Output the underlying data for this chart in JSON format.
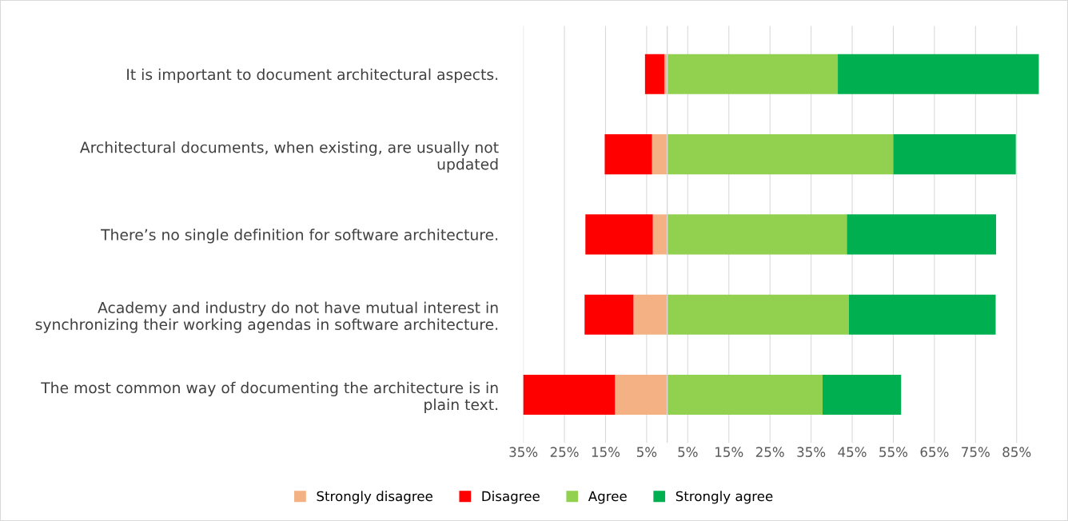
{
  "chart_data": {
    "type": "bar",
    "orientation": "horizontal",
    "stacked": true,
    "categories": [
      "It is important to document architectural aspects.",
      "Architectural documents, when existing, are usually not\nupdated",
      "There’s no single definition for software architecture.",
      "Academy and industry do not have mutual interest in\nsynchronizing their working agendas in software architecture.",
      "The most common way of documenting the architecture is in\nplain text."
    ],
    "series": [
      {
        "name": "Strongly disagree",
        "color": "#f4b183",
        "values": [
          -0.7,
          -3.7,
          -3.5,
          -8.2,
          -12.7
        ]
      },
      {
        "name": "Disagree",
        "color": "#ff0000",
        "values": [
          -4.7,
          -11.5,
          -16.4,
          -11.9,
          -22.4
        ]
      },
      {
        "name": "Agree",
        "color": "#92d050",
        "values": [
          41.5,
          55.0,
          43.7,
          44.2,
          37.8
        ]
      },
      {
        "name": "Strongly agree",
        "color": "#00b050",
        "values": [
          48.9,
          29.8,
          36.3,
          35.7,
          19.1
        ]
      }
    ],
    "xlim": [
      -35,
      91
    ],
    "xticks": [
      {
        "value": -35,
        "label": "35%"
      },
      {
        "value": -25,
        "label": "25%"
      },
      {
        "value": -15,
        "label": "15%"
      },
      {
        "value": -5,
        "label": "5%"
      },
      {
        "value": 5,
        "label": "5%"
      },
      {
        "value": 15,
        "label": "15%"
      },
      {
        "value": 25,
        "label": "25%"
      },
      {
        "value": 35,
        "label": "35%"
      },
      {
        "value": 45,
        "label": "45%"
      },
      {
        "value": 55,
        "label": "55%"
      },
      {
        "value": 65,
        "label": "65%"
      },
      {
        "value": 75,
        "label": "75%"
      },
      {
        "value": 85,
        "label": "85%"
      }
    ],
    "grid": "x",
    "legend": "bottom"
  }
}
